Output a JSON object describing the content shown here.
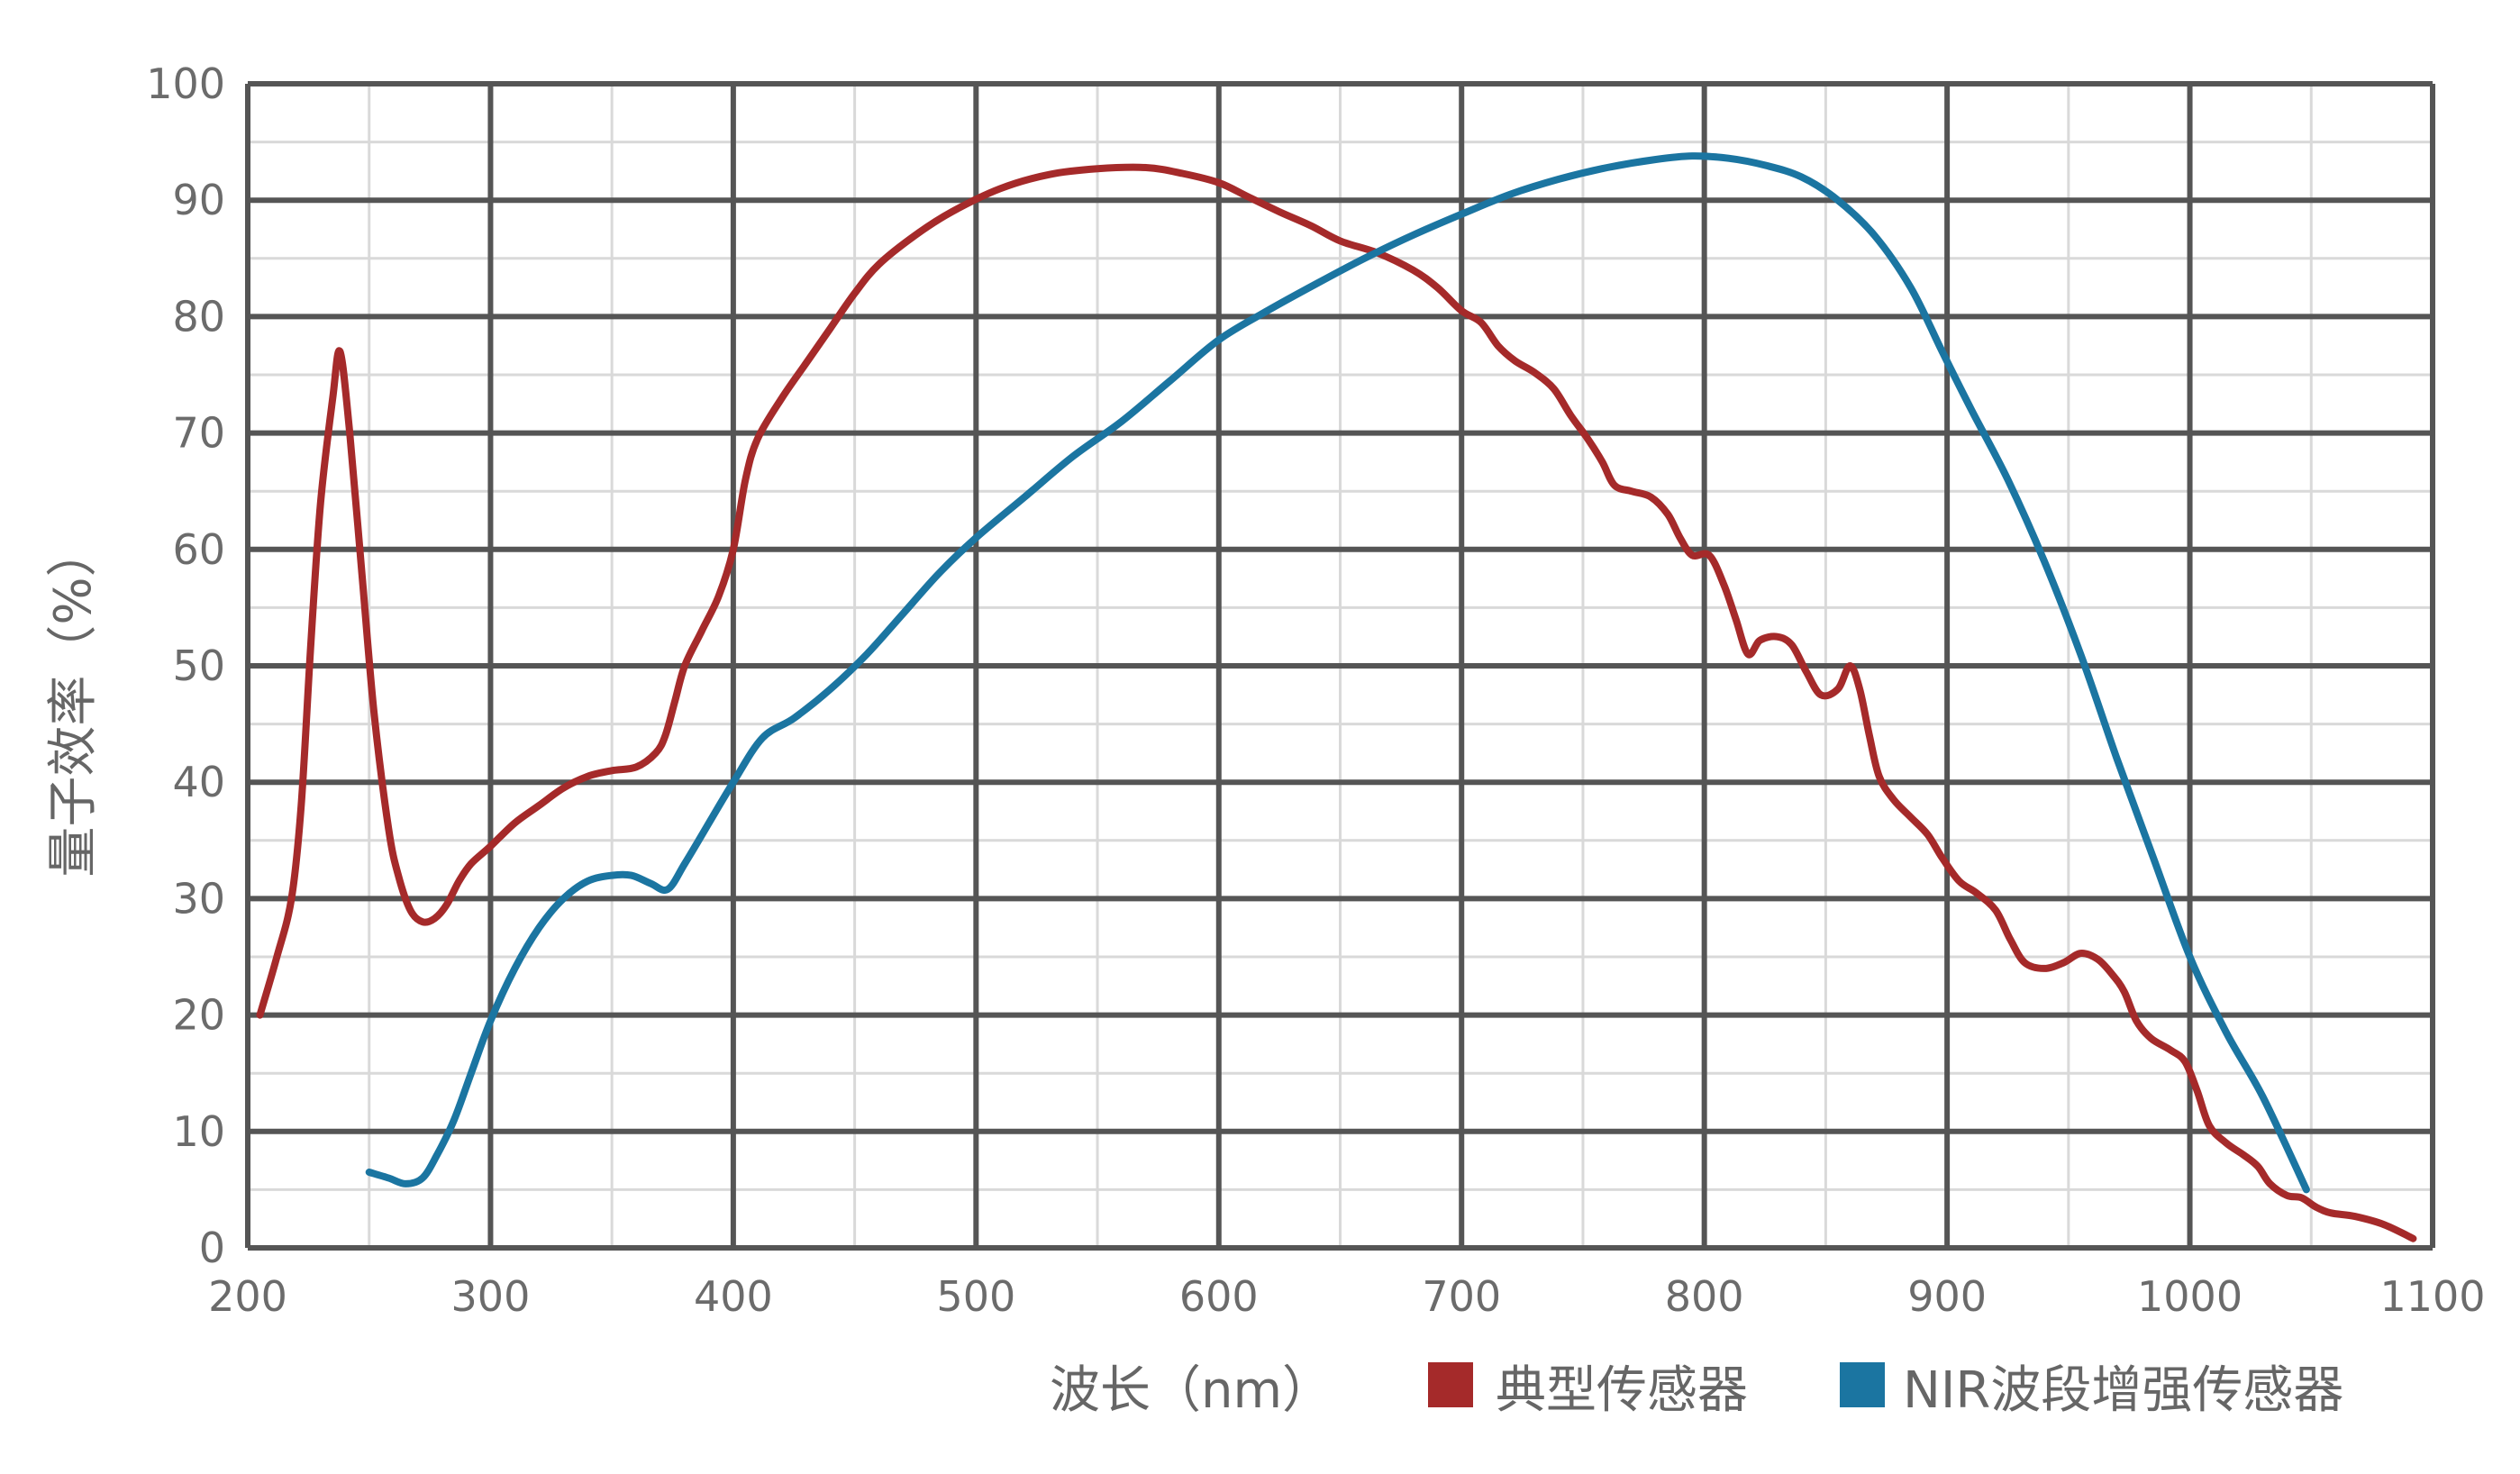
{
  "chart_data": {
    "type": "line",
    "xlabel": "波长（nm）",
    "ylabel": "量子效率（%）",
    "xlim": [
      200,
      1100
    ],
    "ylim": [
      0,
      100
    ],
    "x_ticks": [
      "200",
      "300",
      "400",
      "500",
      "600",
      "700",
      "800",
      "900",
      "1000",
      "1100"
    ],
    "y_ticks": [
      "0",
      "10",
      "20",
      "30",
      "40",
      "50",
      "60",
      "70",
      "80",
      "90",
      "100"
    ],
    "x_major_step": 100,
    "x_minor_step": 50,
    "y_major_step": 10,
    "y_minor_step": 5,
    "grid": true,
    "legend_position": "bottom-right",
    "colors": {
      "major_grid": "#555555",
      "minor_grid": "#d9d9d9"
    },
    "series": [
      {
        "name": "典型传感器",
        "color": "#a52a2a",
        "points": [
          [
            205,
            20
          ],
          [
            212,
            25
          ],
          [
            218,
            30
          ],
          [
            222,
            38
          ],
          [
            226,
            52
          ],
          [
            230,
            64
          ],
          [
            235,
            73
          ],
          [
            238,
            77
          ],
          [
            242,
            70
          ],
          [
            247,
            58
          ],
          [
            252,
            46
          ],
          [
            258,
            36
          ],
          [
            262,
            32
          ],
          [
            267,
            29
          ],
          [
            272,
            28
          ],
          [
            277,
            28.3
          ],
          [
            282,
            29.5
          ],
          [
            287,
            31.5
          ],
          [
            292,
            33
          ],
          [
            300,
            34.5
          ],
          [
            310,
            36.5
          ],
          [
            320,
            38
          ],
          [
            330,
            39.5
          ],
          [
            340,
            40.5
          ],
          [
            350,
            41
          ],
          [
            360,
            41.3
          ],
          [
            368,
            42.5
          ],
          [
            372,
            44
          ],
          [
            376,
            47
          ],
          [
            380,
            50
          ],
          [
            387,
            53
          ],
          [
            394,
            56
          ],
          [
            400,
            60
          ],
          [
            405,
            66
          ],
          [
            410,
            69.5
          ],
          [
            420,
            73
          ],
          [
            430,
            76
          ],
          [
            440,
            79
          ],
          [
            450,
            82
          ],
          [
            460,
            84.5
          ],
          [
            475,
            87
          ],
          [
            490,
            89
          ],
          [
            510,
            91
          ],
          [
            530,
            92.2
          ],
          [
            550,
            92.7
          ],
          [
            570,
            92.8
          ],
          [
            585,
            92.3
          ],
          [
            600,
            91.5
          ],
          [
            612,
            90.3
          ],
          [
            625,
            89
          ],
          [
            638,
            87.8
          ],
          [
            650,
            86.5
          ],
          [
            665,
            85.5
          ],
          [
            680,
            84
          ],
          [
            690,
            82.5
          ],
          [
            700,
            80.5
          ],
          [
            708,
            79.5
          ],
          [
            715,
            77.5
          ],
          [
            722,
            76.2
          ],
          [
            730,
            75.2
          ],
          [
            738,
            73.8
          ],
          [
            745,
            71.5
          ],
          [
            752,
            69.5
          ],
          [
            758,
            67.5
          ],
          [
            763,
            65.5
          ],
          [
            770,
            65
          ],
          [
            778,
            64.5
          ],
          [
            785,
            63
          ],
          [
            790,
            61
          ],
          [
            795,
            59.5
          ],
          [
            802,
            59.5
          ],
          [
            808,
            57
          ],
          [
            813,
            54
          ],
          [
            818,
            51
          ],
          [
            823,
            52.2
          ],
          [
            830,
            52.5
          ],
          [
            836,
            51.8
          ],
          [
            842,
            49.5
          ],
          [
            848,
            47.5
          ],
          [
            855,
            48
          ],
          [
            860,
            50
          ],
          [
            864,
            48
          ],
          [
            868,
            44
          ],
          [
            872,
            40.5
          ],
          [
            878,
            38.5
          ],
          [
            885,
            37
          ],
          [
            892,
            35.5
          ],
          [
            898,
            33.5
          ],
          [
            905,
            31.5
          ],
          [
            912,
            30.5
          ],
          [
            920,
            29
          ],
          [
            926,
            26.5
          ],
          [
            932,
            24.5
          ],
          [
            940,
            24
          ],
          [
            948,
            24.5
          ],
          [
            955,
            25.3
          ],
          [
            962,
            24.8
          ],
          [
            968,
            23.5
          ],
          [
            973,
            22
          ],
          [
            978,
            19.5
          ],
          [
            984,
            18
          ],
          [
            992,
            17
          ],
          [
            998,
            16
          ],
          [
            1003,
            13.5
          ],
          [
            1008,
            10.5
          ],
          [
            1015,
            9
          ],
          [
            1022,
            8
          ],
          [
            1028,
            7
          ],
          [
            1033,
            5.5
          ],
          [
            1040,
            4.5
          ],
          [
            1046,
            4.3
          ],
          [
            1052,
            3.5
          ],
          [
            1058,
            3
          ],
          [
            1068,
            2.7
          ],
          [
            1080,
            2
          ],
          [
            1092,
            0.8
          ]
        ]
      },
      {
        "name": "NIR波段增强传感器",
        "color": "#1b75a1",
        "points": [
          [
            250,
            6.5
          ],
          [
            258,
            6
          ],
          [
            265,
            5.5
          ],
          [
            272,
            6
          ],
          [
            278,
            8
          ],
          [
            285,
            11
          ],
          [
            292,
            15
          ],
          [
            300,
            19.5
          ],
          [
            310,
            24
          ],
          [
            320,
            27.5
          ],
          [
            330,
            30
          ],
          [
            340,
            31.5
          ],
          [
            350,
            32
          ],
          [
            358,
            32
          ],
          [
            366,
            31.3
          ],
          [
            373,
            30.8
          ],
          [
            380,
            33
          ],
          [
            390,
            36.5
          ],
          [
            400,
            40
          ],
          [
            412,
            43.8
          ],
          [
            425,
            45.5
          ],
          [
            440,
            48
          ],
          [
            455,
            51
          ],
          [
            470,
            54.5
          ],
          [
            485,
            58
          ],
          [
            500,
            61
          ],
          [
            520,
            64.5
          ],
          [
            540,
            68
          ],
          [
            560,
            71
          ],
          [
            580,
            74.5
          ],
          [
            600,
            78
          ],
          [
            620,
            80.5
          ],
          [
            640,
            82.8
          ],
          [
            660,
            85
          ],
          [
            680,
            87
          ],
          [
            700,
            88.8
          ],
          [
            720,
            90.5
          ],
          [
            740,
            91.8
          ],
          [
            760,
            92.8
          ],
          [
            780,
            93.5
          ],
          [
            795,
            93.8
          ],
          [
            810,
            93.6
          ],
          [
            825,
            93
          ],
          [
            840,
            92
          ],
          [
            855,
            90
          ],
          [
            870,
            87
          ],
          [
            885,
            82.5
          ],
          [
            898,
            77
          ],
          [
            910,
            72
          ],
          [
            925,
            66
          ],
          [
            940,
            59
          ],
          [
            955,
            51
          ],
          [
            970,
            42
          ],
          [
            985,
            33.5
          ],
          [
            1000,
            25
          ],
          [
            1015,
            18.5
          ],
          [
            1030,
            13
          ],
          [
            1048,
            5
          ]
        ]
      }
    ]
  }
}
